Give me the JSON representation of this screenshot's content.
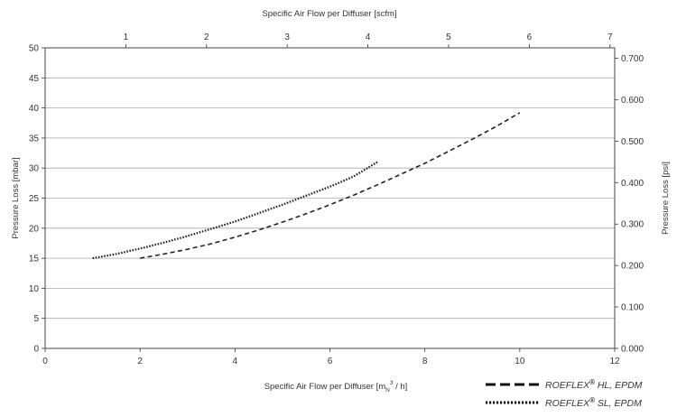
{
  "chart_data": {
    "type": "line",
    "title": "",
    "xlabel": "Specific Air Flow per Diffuser [mN³/ h]",
    "xlabel_parts": {
      "main": "Specific Air Flow per Diffuser [m",
      "sub": "N",
      "sup": "3",
      "tail": " / h]"
    },
    "ylabel": "Pressure Loss [mbar]",
    "top_xlabel": "Specific Air Flow per Diffuser [scfm]",
    "right_ylabel": "Pressure Loss [psi]",
    "xlim": [
      0,
      12
    ],
    "ylim": [
      0,
      50
    ],
    "x_ticks": [
      "0",
      "2",
      "4",
      "6",
      "8",
      "10",
      "12"
    ],
    "y_ticks": [
      "0",
      "5",
      "10",
      "15",
      "20",
      "25",
      "30",
      "35",
      "40",
      "45",
      "50"
    ],
    "top_ticks": [
      {
        "value": 1,
        "label": "1"
      },
      {
        "value": 2,
        "label": "2"
      },
      {
        "value": 3,
        "label": "3"
      },
      {
        "value": 4,
        "label": "4"
      },
      {
        "value": 5,
        "label": "5"
      },
      {
        "value": 6,
        "label": "6"
      },
      {
        "value": 7,
        "label": "7"
      }
    ],
    "top_axis_factor": 1.7,
    "right_ticks": [
      {
        "value": 0.0,
        "label": "0.000"
      },
      {
        "value": 0.1,
        "label": "0.100"
      },
      {
        "value": 0.2,
        "label": "0.200"
      },
      {
        "value": 0.3,
        "label": "0.300"
      },
      {
        "value": 0.4,
        "label": "0.400"
      },
      {
        "value": 0.5,
        "label": "0.500"
      },
      {
        "value": 0.6,
        "label": "0.600"
      },
      {
        "value": 0.7,
        "label": "0.700"
      }
    ],
    "right_axis_factor": 68.95,
    "grid": "horizontal",
    "legend_position": "bottom-right",
    "series": [
      {
        "name": "ROEFLEX® HL, EPDM",
        "name_parts": {
          "brand": "ROEFLEX",
          "reg": "®",
          "rest": " HL, EPDM"
        },
        "style": "dashed",
        "x": [
          2.0,
          2.5,
          3.0,
          3.5,
          4.0,
          4.5,
          5.0,
          5.5,
          6.0,
          6.5,
          7.0,
          7.5,
          8.0,
          8.5,
          9.0,
          9.5,
          10.0
        ],
        "y": [
          15.0,
          15.7,
          16.5,
          17.4,
          18.5,
          19.7,
          21.0,
          22.4,
          23.9,
          25.5,
          27.2,
          29.0,
          30.8,
          32.8,
          34.8,
          36.9,
          39.2
        ]
      },
      {
        "name": "ROEFLEX® SL, EPDM",
        "name_parts": {
          "brand": "ROEFLEX",
          "reg": "®",
          "rest": " SL, EPDM"
        },
        "style": "dotted",
        "x": [
          1.0,
          1.5,
          2.0,
          2.5,
          3.0,
          3.5,
          4.0,
          4.5,
          5.0,
          5.5,
          6.0,
          6.5,
          7.0
        ],
        "y": [
          15.0,
          15.7,
          16.6,
          17.6,
          18.7,
          19.9,
          21.1,
          22.5,
          23.9,
          25.4,
          26.9,
          28.6,
          31.0
        ]
      }
    ]
  }
}
